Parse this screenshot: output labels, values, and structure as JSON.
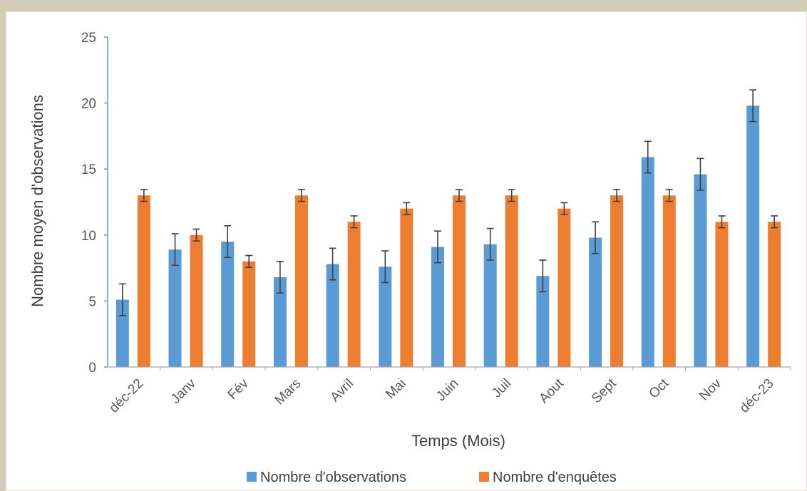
{
  "chart_data": {
    "type": "bar",
    "title": "",
    "xlabel": "Temps (Mois)",
    "ylabel": "Nombre moyen d'observations",
    "ylim": [
      0,
      25
    ],
    "yticks": [
      0,
      5,
      10,
      15,
      20,
      25
    ],
    "grid": false,
    "legend_position": "bottom",
    "categories": [
      "déc-22",
      "Janv",
      "Fév",
      "Mars",
      "Avril",
      "Mai",
      "Juin",
      "Juil",
      "Aout",
      "Sept",
      "Oct",
      "Nov",
      "déc-23"
    ],
    "series": [
      {
        "name": "Nombre d'observations",
        "color": "#5b9bd5",
        "values": [
          5.1,
          8.9,
          9.5,
          6.8,
          7.8,
          7.6,
          9.1,
          9.3,
          6.9,
          9.8,
          15.9,
          14.6,
          19.8
        ],
        "error": [
          1.2,
          1.2,
          1.2,
          1.2,
          1.2,
          1.2,
          1.2,
          1.2,
          1.2,
          1.2,
          1.2,
          1.2,
          1.2
        ]
      },
      {
        "name": "Nombre d'enquêtes",
        "color": "#ed7d31",
        "values": [
          13,
          10,
          8,
          13,
          11,
          12,
          13,
          13,
          12,
          13,
          13,
          11,
          11
        ],
        "error": [
          0.45,
          0.45,
          0.45,
          0.45,
          0.45,
          0.45,
          0.45,
          0.45,
          0.45,
          0.45,
          0.45,
          0.45,
          0.45
        ]
      }
    ]
  }
}
